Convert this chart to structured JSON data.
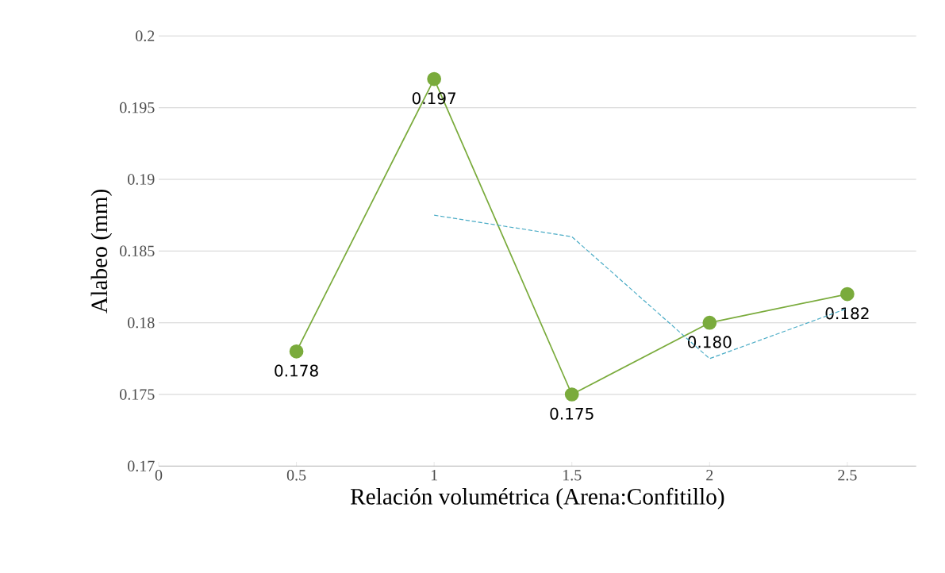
{
  "chart_data": {
    "type": "line",
    "xlabel": "Relación volumétrica (Arena:Confitillo)",
    "ylabel": "Alabeo (mm)",
    "xlim": [
      0,
      2.75
    ],
    "xticks": [
      0,
      0.5,
      1,
      1.5,
      2,
      2.5
    ],
    "ylim": [
      0.17,
      0.2
    ],
    "yticks": [
      0.17,
      0.175,
      0.18,
      0.185,
      0.19,
      0.195,
      0.2
    ],
    "grid": "y",
    "series": [
      {
        "x": [
          0.5,
          1,
          1.5,
          2,
          2.5
        ],
        "values": [
          0.178,
          0.197,
          0.175,
          0.18,
          0.182
        ],
        "color": "#7aab3c",
        "marker": "circle",
        "line_style": "solid",
        "value_labels": [
          "0.178",
          "0.197",
          "0.175",
          "0.180",
          "0.182"
        ]
      },
      {
        "x": [
          1,
          1.5,
          2,
          2.5
        ],
        "values": [
          0.1875,
          0.186,
          0.1775,
          0.181
        ],
        "color": "#4bacc6",
        "marker": "none",
        "line_style": "dashed"
      }
    ]
  }
}
